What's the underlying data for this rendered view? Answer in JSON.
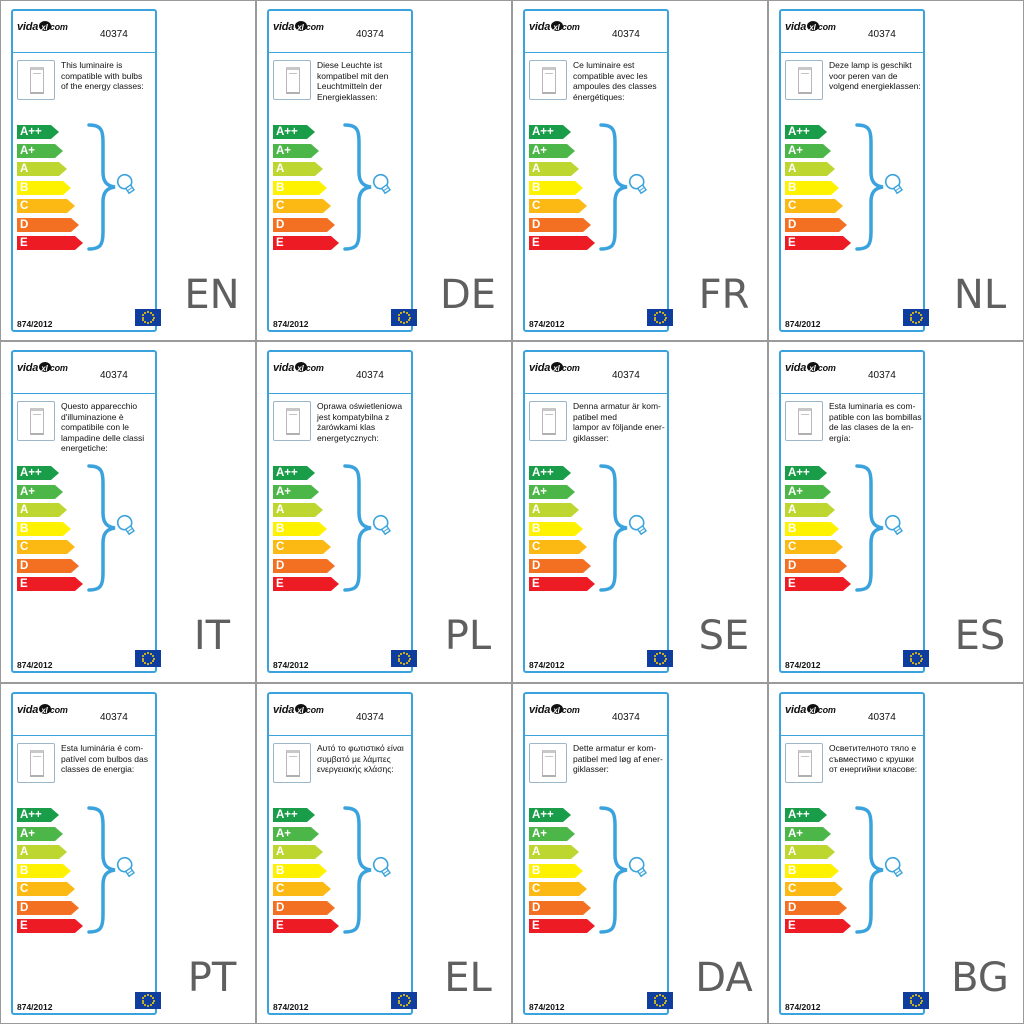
{
  "model_code": "40374",
  "logo": {
    "part1": "vida",
    "part2": "xl",
    "suffix": ".com"
  },
  "regulation": "874/2012",
  "energy_classes": [
    "A++",
    "A+",
    "A",
    "B",
    "C",
    "D",
    "E"
  ],
  "class_colors": [
    "#1a9d49",
    "#4cb748",
    "#bed630",
    "#fff200",
    "#fdb913",
    "#f37022",
    "#ed1c24"
  ],
  "accent_color": "#3aa3de",
  "icons": {
    "luminaire": "luminaire-icon",
    "bulb": "light-bulb-icon",
    "eu_flag": "eu-flag-icon"
  },
  "panels": [
    {
      "lang": "EN",
      "text": "This luminaire is\ncompatible with bulbs\nof the energy classes:"
    },
    {
      "lang": "DE",
      "text": "Diese Leuchte ist\nkompatibel mit den\nLeuchtmitteln der\nEnergieklassen:"
    },
    {
      "lang": "FR",
      "text": "Ce luminaire est\ncompatible avec les\nampoules des classes\nénergétiques:"
    },
    {
      "lang": "NL",
      "text": "Deze lamp is geschikt\nvoor peren van de\nvolgend energieklassen:"
    },
    {
      "lang": "IT",
      "text": "Questo apparecchio\nd'illuminazione è\ncompatibile con le\nlampadine delle classi\nenergetiche:"
    },
    {
      "lang": "PL",
      "text": "Oprawa oświetleniowa\njest kompatybilna z\nżarówkami klas\nenergetycznych:"
    },
    {
      "lang": "SE",
      "text": "Denna armatur är kom-\npatibel med\nlampor av följande ener-\ngiklasser:"
    },
    {
      "lang": "ES",
      "text": "Esta luminaria es com-\npatible con las bombillas\nde las clases de la en-\nergía:"
    },
    {
      "lang": "PT",
      "text": "Esta luminária é com-\npatível com bulbos das\nclasses de energia:"
    },
    {
      "lang": "EL",
      "text": "Αυτό το φωτιστικό είναι\nσυμβατό με λάμπες\nενεργειακής κλάσης:"
    },
    {
      "lang": "DA",
      "text": "Dette armatur er kom-\npatibel med løg af ener-\ngiklasser:"
    },
    {
      "lang": "BG",
      "text": "Осветителното тяло е\nсъвместимо с крушки\nот енергийни класове:"
    }
  ]
}
